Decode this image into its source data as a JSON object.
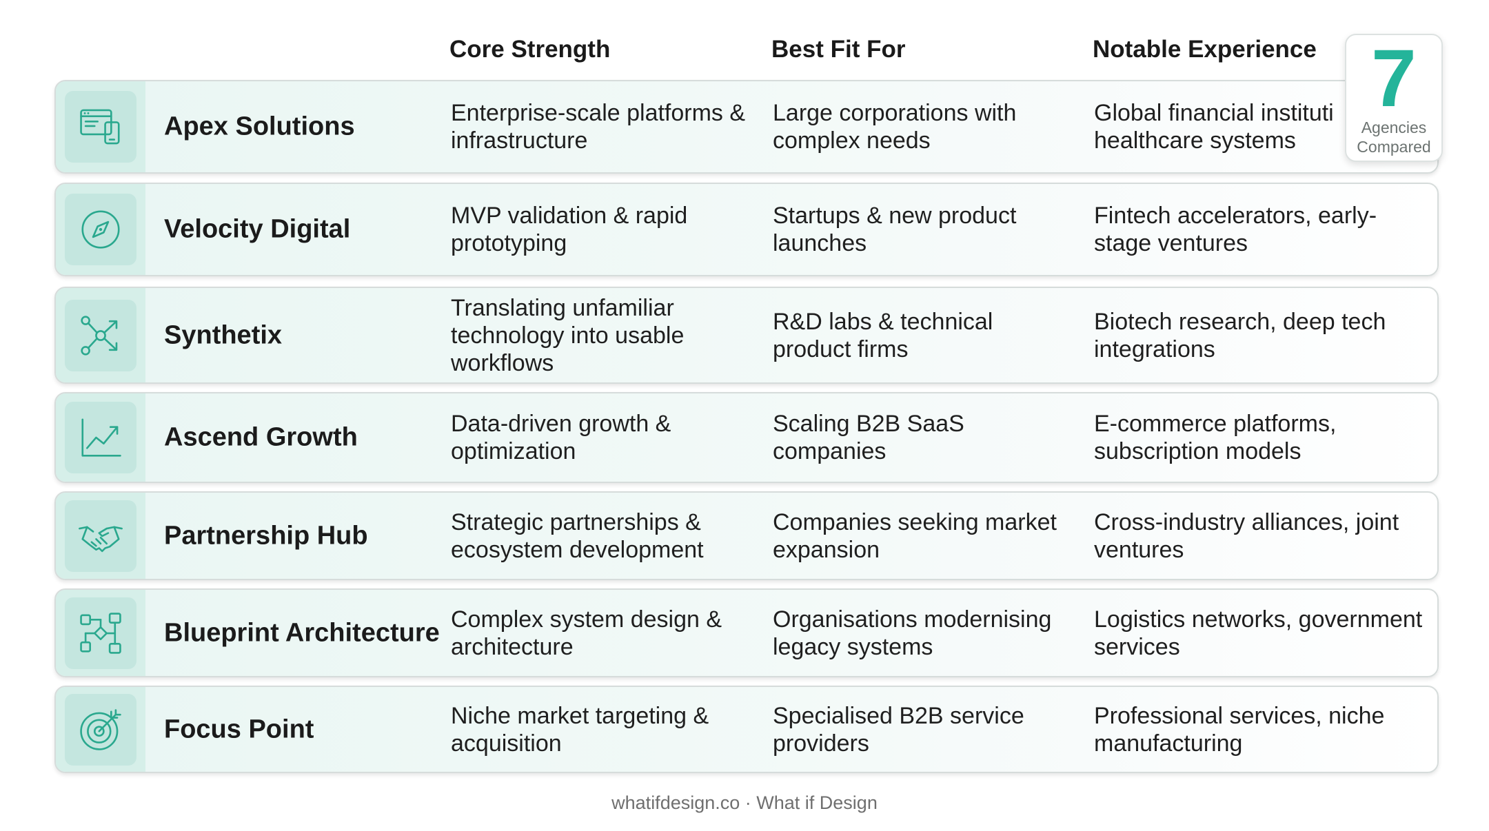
{
  "header": {
    "col1": "Core Strength",
    "col2": "Best Fit For",
    "col3": "Notable Experience"
  },
  "badge": {
    "number": "7",
    "label_line1": "Agencies",
    "label_line2": "Compared"
  },
  "accent_color": "#24b49a",
  "rows": [
    {
      "icon": "web-devices-icon",
      "name": "Apex Solutions",
      "strength": "Enterprise-scale platforms & infrastructure",
      "fit": "Large corporations with complex needs",
      "experience": "Global financial instituti healthcare systems"
    },
    {
      "icon": "compass-icon",
      "name": "Velocity Digital",
      "strength": "MVP validation & rapid prototyping",
      "fit": "Startups & new product launches",
      "experience": "Fintech accelerators, early-stage ventures"
    },
    {
      "icon": "network-nodes-icon",
      "name": "Synthetix",
      "strength": "Translating unfamiliar technology into usable workflows",
      "fit": "R&D labs & technical product firms",
      "experience": "Biotech research, deep tech integrations"
    },
    {
      "icon": "growth-chart-icon",
      "name": "Ascend Growth",
      "strength": "Data-driven growth & optimization",
      "fit": "Scaling B2B SaaS companies",
      "experience": "E-commerce platforms, subscription models"
    },
    {
      "icon": "handshake-icon",
      "name": "Partnership Hub",
      "strength": "Strategic partnerships & ecosystem development",
      "fit": "Companies seeking market expansion",
      "experience": "Cross-industry alliances, joint ventures"
    },
    {
      "icon": "flowchart-icon",
      "name": "Blueprint Architecture",
      "strength": "Complex system design & architecture",
      "fit": "Organisations modernising legacy systems",
      "experience": "Logistics networks, government services"
    },
    {
      "icon": "target-icon",
      "name": "Focus Point",
      "strength": "Niche market targeting & acquisition",
      "fit": "Specialised B2B service providers",
      "experience": "Professional services, niche manufacturing"
    }
  ],
  "footer": "whatifdesign.co · What if Design"
}
